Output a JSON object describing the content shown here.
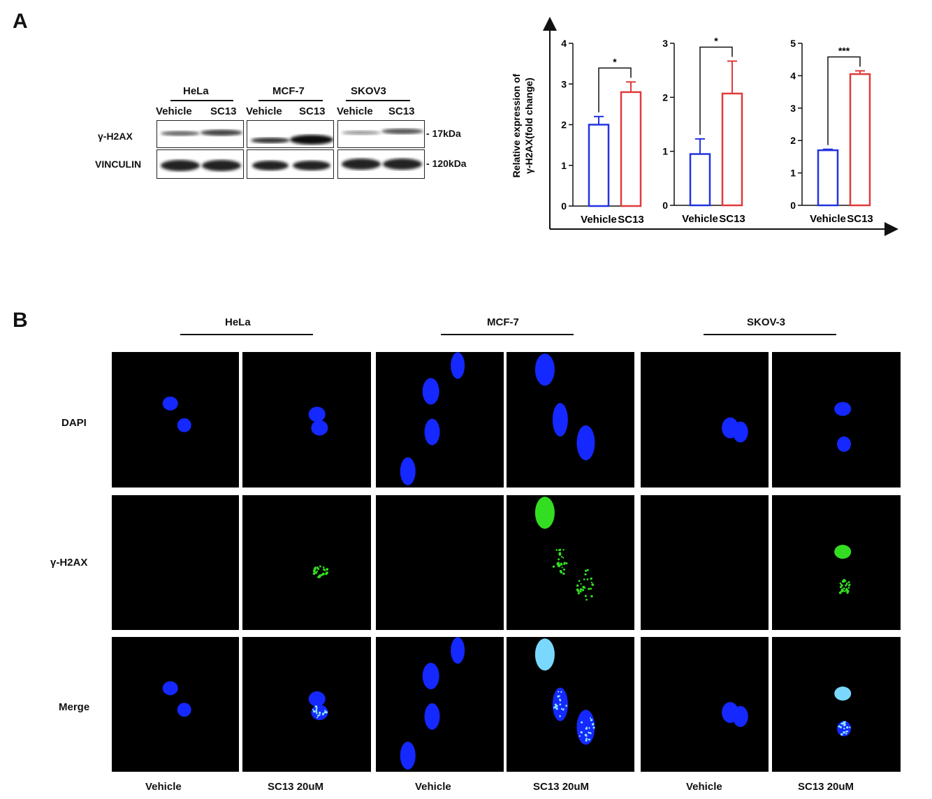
{
  "panel_a": {
    "label": "A",
    "western": {
      "cell_lines": [
        "HeLa",
        "MCF-7",
        "SKOV3"
      ],
      "lanes": [
        "Vehicle",
        "SC13",
        "Vehicle",
        "SC13",
        "Vehicle",
        "SC13"
      ],
      "rows": [
        {
          "protein": "γ-H2AX",
          "size": "- 17kDa"
        },
        {
          "protein": "VINCULIN",
          "size": "- 120kDa"
        }
      ]
    }
  },
  "panel_b": {
    "label": "B",
    "cell_lines": [
      "HeLa",
      "MCF-7",
      "SKOV-3"
    ],
    "rows": [
      "DAPI",
      "γ-H2AX",
      "Merge"
    ],
    "columns": [
      "Vehicle",
      "SC13 20uM",
      "Vehicle",
      "SC13 20uM",
      "Vehicle",
      "SC13 20uM"
    ]
  },
  "colors": {
    "vehicle": "#2233e0",
    "sc13": "#e03a3a",
    "dapi": "#1428ff",
    "h2ax": "#33dd22"
  },
  "chart_data": [
    {
      "type": "bar",
      "cell_line": "HeLa",
      "categories": [
        "Vehicle",
        "SC13"
      ],
      "values": [
        2.0,
        2.8
      ],
      "errors": [
        0.2,
        0.25
      ],
      "ylim": [
        0,
        4
      ],
      "yticks": [
        "0",
        "1",
        "2",
        "3",
        "4"
      ],
      "significance": "*",
      "ylabel": [
        "Relative expression of",
        "γ-H2AX(fold change)"
      ]
    },
    {
      "type": "bar",
      "cell_line": "MCF-7",
      "categories": [
        "Vehicle",
        "SC13"
      ],
      "values": [
        0.95,
        2.07
      ],
      "errors": [
        0.28,
        0.6
      ],
      "ylim": [
        0,
        3
      ],
      "yticks": [
        "0",
        "1",
        "2",
        "3"
      ],
      "significance": "*"
    },
    {
      "type": "bar",
      "cell_line": "SKOV3",
      "categories": [
        "Vehicle",
        "SC13"
      ],
      "values": [
        1.7,
        4.05
      ],
      "errors": [
        0.03,
        0.1
      ],
      "ylim": [
        0,
        5
      ],
      "yticks": [
        "0",
        "1",
        "2",
        "3",
        "4",
        "5"
      ],
      "significance": "***"
    }
  ]
}
